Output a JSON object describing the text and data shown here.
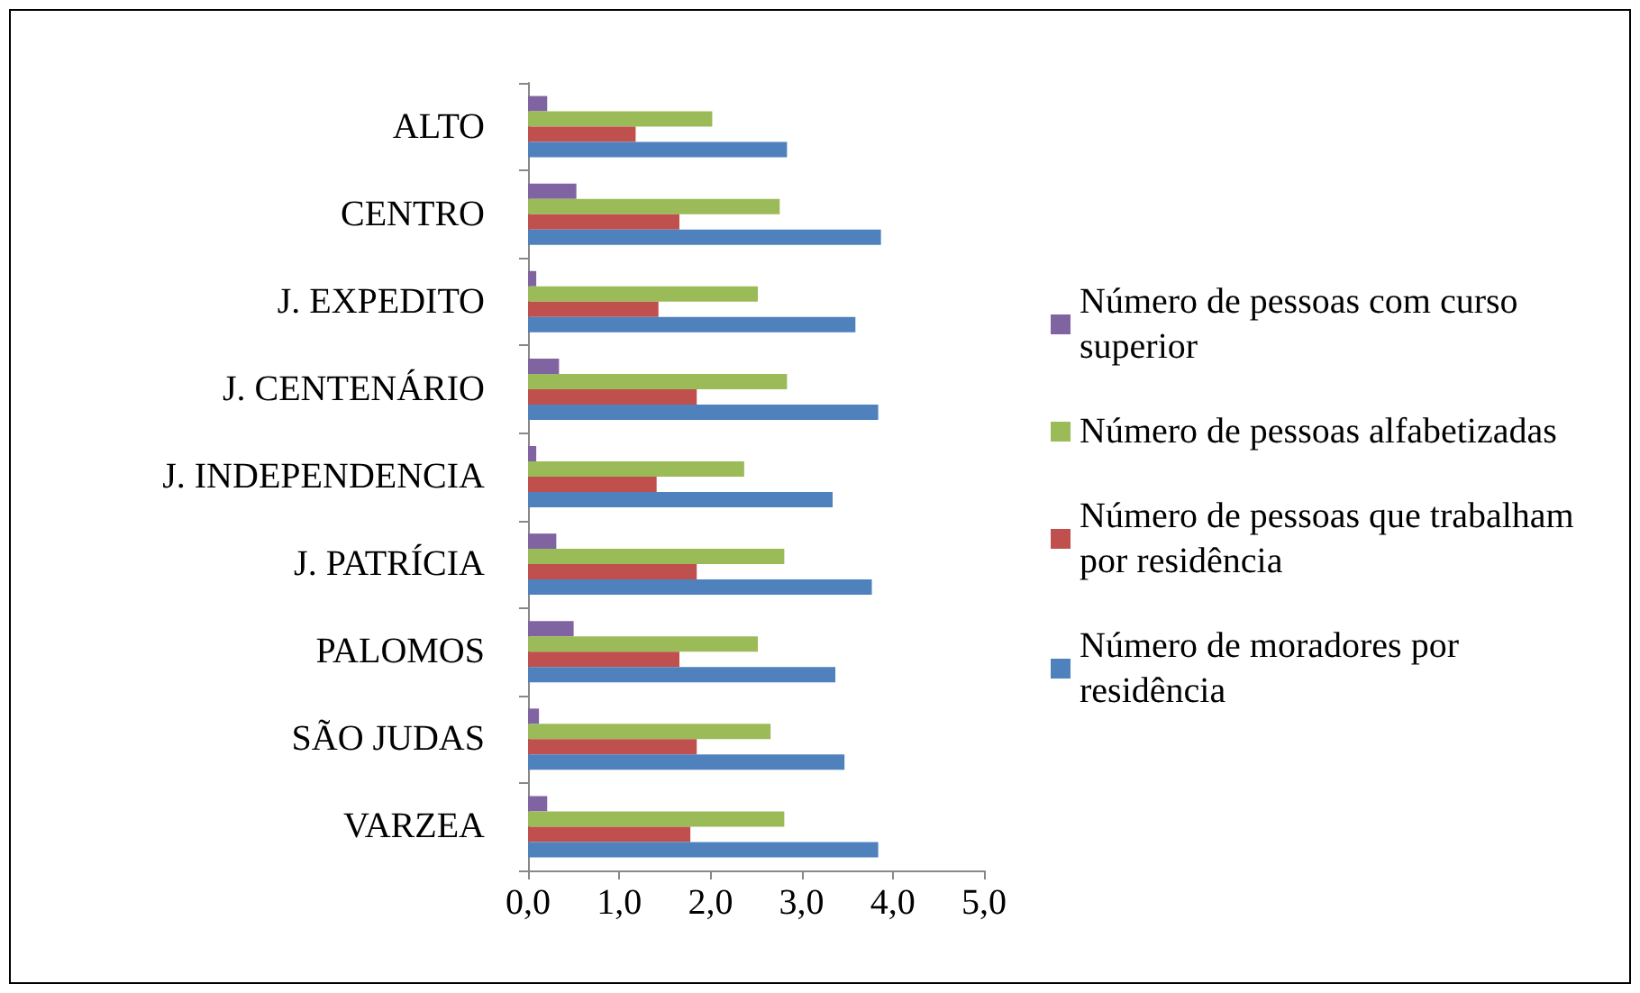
{
  "chart_data": {
    "type": "bar",
    "orientation": "horizontal",
    "categories": [
      "ALTO",
      "CENTRO",
      "J. EXPEDITO",
      "J. CENTENÁRIO",
      "J. INDEPENDENCIA",
      "J. PATRÍCIA",
      "PALOMOS",
      "SÃO JUDAS",
      "VARZEA"
    ],
    "series": [
      {
        "name": "Número de pessoas com curso superior",
        "color": "#8064a2",
        "values": [
          0.21,
          0.53,
          0.09,
          0.34,
          0.09,
          0.31,
          0.5,
          0.12,
          0.21
        ]
      },
      {
        "name": "Número de pessoas alfabetizadas",
        "color": "#9bbb59",
        "values": [
          2.02,
          2.76,
          2.52,
          2.84,
          2.37,
          2.81,
          2.52,
          2.66,
          2.81
        ]
      },
      {
        "name": "Número de pessoas que trabalham por residência",
        "color": "#c0504d",
        "values": [
          1.18,
          1.66,
          1.43,
          1.85,
          1.41,
          1.85,
          1.66,
          1.85,
          1.78
        ]
      },
      {
        "name": "Número de moradores por residência",
        "color": "#4f81bd",
        "values": [
          2.84,
          3.87,
          3.59,
          3.84,
          3.34,
          3.77,
          3.37,
          3.47,
          3.84
        ]
      }
    ],
    "xlim": [
      0,
      5
    ],
    "xticks": [
      {
        "value": 0,
        "label": "0,0"
      },
      {
        "value": 1,
        "label": "1,0"
      },
      {
        "value": 2,
        "label": "2,0"
      },
      {
        "value": 3,
        "label": "3,0"
      },
      {
        "value": 4,
        "label": "4,0"
      },
      {
        "value": 5,
        "label": "5,0"
      }
    ],
    "grid": false,
    "legend": "right"
  }
}
